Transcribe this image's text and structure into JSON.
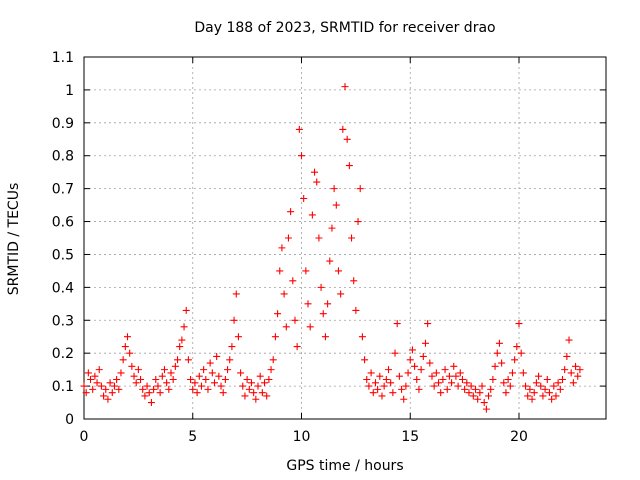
{
  "chart_data": {
    "type": "scatter",
    "title": "Day 188 of 2023, SRMTID for receiver drao",
    "xlabel": "GPS time / hours",
    "ylabel": "SRMTID / TECUs",
    "xlim": [
      0,
      24
    ],
    "ylim": [
      0,
      1.1
    ],
    "xticks": [
      0,
      5,
      10,
      15,
      20
    ],
    "yticks": [
      0,
      0.1,
      0.2,
      0.3,
      0.4,
      0.5,
      0.6,
      0.7,
      0.8,
      0.9,
      1,
      1.1
    ],
    "xtick_labels": [
      "0",
      "5",
      "10",
      "15",
      "20"
    ],
    "ytick_labels": [
      "0",
      "0.1",
      "0.2",
      "0.3",
      "0.4",
      "0.5",
      "0.6",
      "0.7",
      "0.8",
      "0.9",
      "1",
      "1.1"
    ],
    "grid": true,
    "marker": "+",
    "color": "#ff0000",
    "series": [
      {
        "name": "SRMTID",
        "points": [
          [
            0.0,
            0.1
          ],
          [
            0.1,
            0.08
          ],
          [
            0.2,
            0.14
          ],
          [
            0.3,
            0.12
          ],
          [
            0.4,
            0.09
          ],
          [
            0.5,
            0.13
          ],
          [
            0.6,
            0.11
          ],
          [
            0.7,
            0.15
          ],
          [
            0.8,
            0.1
          ],
          [
            0.9,
            0.07
          ],
          [
            1.0,
            0.09
          ],
          [
            1.1,
            0.06
          ],
          [
            1.2,
            0.11
          ],
          [
            1.3,
            0.08
          ],
          [
            1.4,
            0.1
          ],
          [
            1.5,
            0.12
          ],
          [
            1.6,
            0.09
          ],
          [
            1.7,
            0.14
          ],
          [
            1.8,
            0.18
          ],
          [
            1.9,
            0.22
          ],
          [
            2.0,
            0.25
          ],
          [
            2.1,
            0.2
          ],
          [
            2.2,
            0.16
          ],
          [
            2.3,
            0.13
          ],
          [
            2.4,
            0.11
          ],
          [
            2.5,
            0.15
          ],
          [
            2.6,
            0.12
          ],
          [
            2.7,
            0.09
          ],
          [
            2.8,
            0.07
          ],
          [
            2.9,
            0.1
          ],
          [
            3.0,
            0.08
          ],
          [
            3.1,
            0.05
          ],
          [
            3.2,
            0.09
          ],
          [
            3.3,
            0.12
          ],
          [
            3.4,
            0.1
          ],
          [
            3.5,
            0.08
          ],
          [
            3.6,
            0.13
          ],
          [
            3.7,
            0.15
          ],
          [
            3.8,
            0.11
          ],
          [
            3.9,
            0.09
          ],
          [
            4.0,
            0.14
          ],
          [
            4.1,
            0.12
          ],
          [
            4.2,
            0.16
          ],
          [
            4.3,
            0.18
          ],
          [
            4.4,
            0.22
          ],
          [
            4.5,
            0.24
          ],
          [
            4.6,
            0.28
          ],
          [
            4.7,
            0.33
          ],
          [
            4.8,
            0.18
          ],
          [
            4.9,
            0.12
          ],
          [
            5.0,
            0.09
          ],
          [
            5.1,
            0.11
          ],
          [
            5.2,
            0.08
          ],
          [
            5.3,
            0.13
          ],
          [
            5.4,
            0.1
          ],
          [
            5.5,
            0.15
          ],
          [
            5.6,
            0.12
          ],
          [
            5.7,
            0.09
          ],
          [
            5.8,
            0.17
          ],
          [
            5.9,
            0.14
          ],
          [
            6.0,
            0.11
          ],
          [
            6.1,
            0.19
          ],
          [
            6.2,
            0.13
          ],
          [
            6.3,
            0.1
          ],
          [
            6.4,
            0.08
          ],
          [
            6.5,
            0.12
          ],
          [
            6.6,
            0.15
          ],
          [
            6.7,
            0.18
          ],
          [
            6.8,
            0.22
          ],
          [
            6.9,
            0.3
          ],
          [
            7.0,
            0.38
          ],
          [
            7.1,
            0.25
          ],
          [
            7.2,
            0.14
          ],
          [
            7.3,
            0.1
          ],
          [
            7.4,
            0.07
          ],
          [
            7.5,
            0.12
          ],
          [
            7.6,
            0.09
          ],
          [
            7.7,
            0.11
          ],
          [
            7.8,
            0.08
          ],
          [
            7.9,
            0.06
          ],
          [
            8.0,
            0.1
          ],
          [
            8.1,
            0.13
          ],
          [
            8.2,
            0.08
          ],
          [
            8.3,
            0.11
          ],
          [
            8.4,
            0.07
          ],
          [
            8.5,
            0.12
          ],
          [
            8.6,
            0.15
          ],
          [
            8.7,
            0.18
          ],
          [
            8.8,
            0.25
          ],
          [
            8.9,
            0.32
          ],
          [
            9.0,
            0.45
          ],
          [
            9.1,
            0.52
          ],
          [
            9.2,
            0.38
          ],
          [
            9.3,
            0.28
          ],
          [
            9.4,
            0.55
          ],
          [
            9.5,
            0.63
          ],
          [
            9.6,
            0.42
          ],
          [
            9.7,
            0.3
          ],
          [
            9.8,
            0.22
          ],
          [
            9.9,
            0.88
          ],
          [
            10.0,
            0.8
          ],
          [
            10.1,
            0.67
          ],
          [
            10.2,
            0.45
          ],
          [
            10.3,
            0.35
          ],
          [
            10.4,
            0.28
          ],
          [
            10.5,
            0.62
          ],
          [
            10.6,
            0.75
          ],
          [
            10.7,
            0.72
          ],
          [
            10.8,
            0.55
          ],
          [
            10.9,
            0.4
          ],
          [
            11.0,
            0.32
          ],
          [
            11.1,
            0.25
          ],
          [
            11.2,
            0.35
          ],
          [
            11.3,
            0.48
          ],
          [
            11.4,
            0.58
          ],
          [
            11.5,
            0.7
          ],
          [
            11.6,
            0.65
          ],
          [
            11.7,
            0.45
          ],
          [
            11.8,
            0.38
          ],
          [
            11.9,
            0.88
          ],
          [
            12.0,
            1.01
          ],
          [
            12.1,
            0.85
          ],
          [
            12.2,
            0.77
          ],
          [
            12.3,
            0.55
          ],
          [
            12.4,
            0.42
          ],
          [
            12.5,
            0.33
          ],
          [
            12.6,
            0.6
          ],
          [
            12.7,
            0.7
          ],
          [
            12.8,
            0.25
          ],
          [
            12.9,
            0.18
          ],
          [
            13.0,
            0.12
          ],
          [
            13.1,
            0.1
          ],
          [
            13.2,
            0.14
          ],
          [
            13.3,
            0.08
          ],
          [
            13.4,
            0.11
          ],
          [
            13.5,
            0.09
          ],
          [
            13.6,
            0.13
          ],
          [
            13.7,
            0.07
          ],
          [
            13.8,
            0.1
          ],
          [
            13.9,
            0.12
          ],
          [
            14.0,
            0.15
          ],
          [
            14.1,
            0.11
          ],
          [
            14.2,
            0.08
          ],
          [
            14.3,
            0.2
          ],
          [
            14.4,
            0.29
          ],
          [
            14.5,
            0.13
          ],
          [
            14.6,
            0.09
          ],
          [
            14.7,
            0.06
          ],
          [
            14.8,
            0.1
          ],
          [
            14.9,
            0.14
          ],
          [
            15.0,
            0.18
          ],
          [
            15.1,
            0.21
          ],
          [
            15.2,
            0.16
          ],
          [
            15.3,
            0.12
          ],
          [
            15.4,
            0.09
          ],
          [
            15.5,
            0.15
          ],
          [
            15.6,
            0.19
          ],
          [
            15.7,
            0.23
          ],
          [
            15.8,
            0.29
          ],
          [
            15.9,
            0.17
          ],
          [
            16.0,
            0.13
          ],
          [
            16.1,
            0.1
          ],
          [
            16.2,
            0.14
          ],
          [
            16.3,
            0.11
          ],
          [
            16.4,
            0.08
          ],
          [
            16.5,
            0.12
          ],
          [
            16.6,
            0.15
          ],
          [
            16.7,
            0.09
          ],
          [
            16.8,
            0.13
          ],
          [
            16.9,
            0.11
          ],
          [
            17.0,
            0.16
          ],
          [
            17.1,
            0.13
          ],
          [
            17.2,
            0.1
          ],
          [
            17.3,
            0.14
          ],
          [
            17.4,
            0.12
          ],
          [
            17.5,
            0.09
          ],
          [
            17.6,
            0.11
          ],
          [
            17.7,
            0.08
          ],
          [
            17.8,
            0.1
          ],
          [
            17.9,
            0.07
          ],
          [
            18.0,
            0.09
          ],
          [
            18.1,
            0.06
          ],
          [
            18.2,
            0.08
          ],
          [
            18.3,
            0.1
          ],
          [
            18.4,
            0.05
          ],
          [
            18.5,
            0.03
          ],
          [
            18.6,
            0.07
          ],
          [
            18.7,
            0.09
          ],
          [
            18.8,
            0.12
          ],
          [
            18.9,
            0.16
          ],
          [
            19.0,
            0.2
          ],
          [
            19.1,
            0.23
          ],
          [
            19.2,
            0.17
          ],
          [
            19.3,
            0.11
          ],
          [
            19.4,
            0.08
          ],
          [
            19.5,
            0.12
          ],
          [
            19.6,
            0.1
          ],
          [
            19.7,
            0.14
          ],
          [
            19.8,
            0.18
          ],
          [
            19.9,
            0.22
          ],
          [
            20.0,
            0.29
          ],
          [
            20.1,
            0.2
          ],
          [
            20.2,
            0.14
          ],
          [
            20.3,
            0.1
          ],
          [
            20.4,
            0.07
          ],
          [
            20.5,
            0.09
          ],
          [
            20.6,
            0.06
          ],
          [
            20.7,
            0.08
          ],
          [
            20.8,
            0.11
          ],
          [
            20.9,
            0.13
          ],
          [
            21.0,
            0.1
          ],
          [
            21.1,
            0.07
          ],
          [
            21.2,
            0.09
          ],
          [
            21.3,
            0.12
          ],
          [
            21.4,
            0.08
          ],
          [
            21.5,
            0.06
          ],
          [
            21.6,
            0.1
          ],
          [
            21.7,
            0.07
          ],
          [
            21.8,
            0.11
          ],
          [
            21.9,
            0.09
          ],
          [
            22.0,
            0.12
          ],
          [
            22.1,
            0.15
          ],
          [
            22.2,
            0.19
          ],
          [
            22.3,
            0.24
          ],
          [
            22.4,
            0.14
          ],
          [
            22.5,
            0.11
          ],
          [
            22.6,
            0.16
          ],
          [
            22.7,
            0.13
          ],
          [
            22.8,
            0.15
          ]
        ]
      }
    ]
  }
}
